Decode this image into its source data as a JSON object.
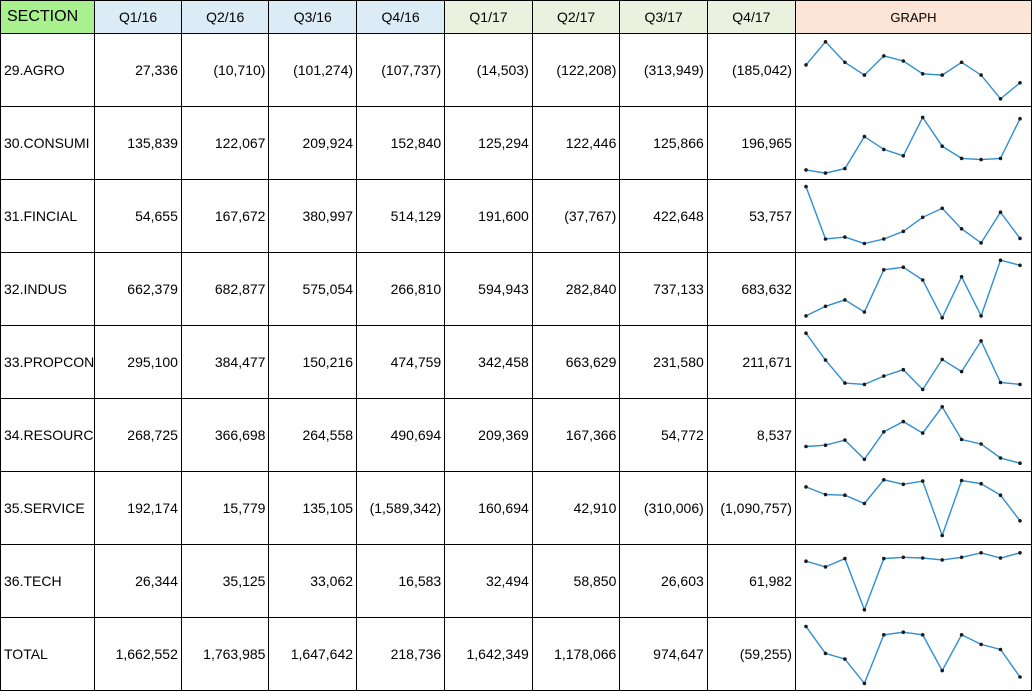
{
  "header": {
    "section": "SECTION",
    "quarters": [
      "Q1/16",
      "Q2/16",
      "Q3/16",
      "Q4/16",
      "Q1/17",
      "Q2/17",
      "Q3/17",
      "Q4/17"
    ],
    "graph": "GRAPH"
  },
  "colors": {
    "section_header": "#a9f08f",
    "q16_header": "#dcecf7",
    "q17_header": "#eaf2df",
    "graph_header": "#fce4d6",
    "sparkline": "#2f8fd1"
  },
  "rows": [
    {
      "name": "29.AGRO",
      "values": [
        "27,336",
        "(10,710)",
        "(101,274)",
        "(107,737)",
        "(14,503)",
        "(122,208)",
        "(313,949)",
        "(185,042)"
      ]
    },
    {
      "name": "30.CONSUMI",
      "values": [
        "135,839",
        "122,067",
        "209,924",
        "152,840",
        "125,294",
        "122,446",
        "125,866",
        "196,965"
      ]
    },
    {
      "name": "31.FINCIAL",
      "values": [
        "54,655",
        "167,672",
        "380,997",
        "514,129",
        "191,600",
        "(37,767)",
        "422,648",
        "53,757"
      ]
    },
    {
      "name": "32.INDUS",
      "values": [
        "662,379",
        "682,877",
        "575,054",
        "266,810",
        "594,943",
        "282,840",
        "737,133",
        "683,632"
      ]
    },
    {
      "name": "33.PROPCON",
      "values": [
        "295,100",
        "384,477",
        "150,216",
        "474,759",
        "342,458",
        "663,629",
        "231,580",
        "211,671"
      ]
    },
    {
      "name": "34.RESOURC",
      "values": [
        "268,725",
        "366,698",
        "264,558",
        "490,694",
        "209,369",
        "167,366",
        "54,772",
        "8,537"
      ]
    },
    {
      "name": "35.SERVICE",
      "values": [
        "192,174",
        "15,779",
        "135,105",
        "(1,589,342)",
        "160,694",
        "42,910",
        "(310,006)",
        "(1,090,757)"
      ]
    },
    {
      "name": "36.TECH",
      "values": [
        "26,344",
        "35,125",
        "33,062",
        "16,583",
        "32,494",
        "58,850",
        "26,603",
        "61,982"
      ]
    },
    {
      "name": "TOTAL",
      "values": [
        "1,662,552",
        "1,763,985",
        "1,647,642",
        "218,736",
        "1,642,349",
        "1,178,066",
        "974,647",
        "(59,255)"
      ]
    }
  ],
  "sparklines": [
    [
      0.42,
      0.06,
      0.38,
      0.58,
      0.28,
      0.36,
      0.56,
      0.58,
      0.38,
      0.58,
      0.95,
      0.7
    ],
    [
      0.92,
      0.97,
      0.9,
      0.4,
      0.6,
      0.7,
      0.1,
      0.55,
      0.74,
      0.76,
      0.74,
      0.12
    ],
    [
      0.04,
      0.86,
      0.83,
      0.93,
      0.86,
      0.74,
      0.52,
      0.38,
      0.7,
      0.92,
      0.44,
      0.85
    ],
    [
      0.92,
      0.77,
      0.67,
      0.86,
      0.2,
      0.16,
      0.36,
      0.95,
      0.31,
      0.92,
      0.05,
      0.13
    ],
    [
      0.05,
      0.47,
      0.83,
      0.85,
      0.72,
      0.62,
      0.93,
      0.46,
      0.65,
      0.17,
      0.82,
      0.85
    ],
    [
      0.68,
      0.66,
      0.58,
      0.88,
      0.45,
      0.29,
      0.47,
      0.06,
      0.57,
      0.64,
      0.86,
      0.94
    ],
    [
      0.17,
      0.29,
      0.3,
      0.43,
      0.06,
      0.13,
      0.08,
      0.93,
      0.07,
      0.12,
      0.3,
      0.7
    ],
    [
      0.19,
      0.28,
      0.15,
      0.95,
      0.15,
      0.13,
      0.14,
      0.17,
      0.13,
      0.06,
      0.14,
      0.06
    ],
    [
      0.07,
      0.49,
      0.58,
      0.96,
      0.2,
      0.16,
      0.2,
      0.76,
      0.2,
      0.35,
      0.43,
      0.86
    ]
  ]
}
